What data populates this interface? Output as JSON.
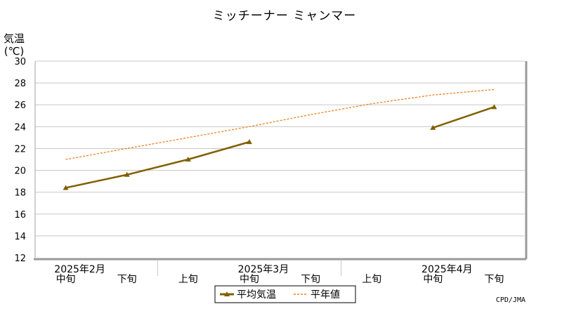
{
  "chart_data": {
    "type": "line",
    "title": "ミッチーナー ミャンマー",
    "ylabel_line1": "気温",
    "ylabel_line2": "(℃)",
    "ylim": [
      12,
      30
    ],
    "yticks": [
      12,
      14,
      16,
      18,
      20,
      22,
      24,
      26,
      28,
      30
    ],
    "grid": true,
    "x_periods": [
      "中旬",
      "下旬",
      "上旬",
      "中旬",
      "下旬",
      "上旬",
      "中旬",
      "下旬"
    ],
    "month_labels": [
      {
        "label": "2025年2月",
        "period_index": 0
      },
      {
        "label": "2025年3月",
        "period_index": 3
      },
      {
        "label": "2025年4月",
        "period_index": 6
      }
    ],
    "series": [
      {
        "name": "平均気温",
        "color": "#806000",
        "values": [
          18.4,
          19.6,
          21.0,
          22.6,
          null,
          null,
          23.9,
          25.8
        ]
      },
      {
        "name": "平年値",
        "color": "#f08020",
        "style": "dotted",
        "values": [
          21.0,
          22.0,
          23.0,
          24.0,
          25.1,
          26.1,
          26.9,
          27.4
        ]
      }
    ],
    "legend_position": "bottom-center",
    "credit": "CPD/JMA"
  }
}
